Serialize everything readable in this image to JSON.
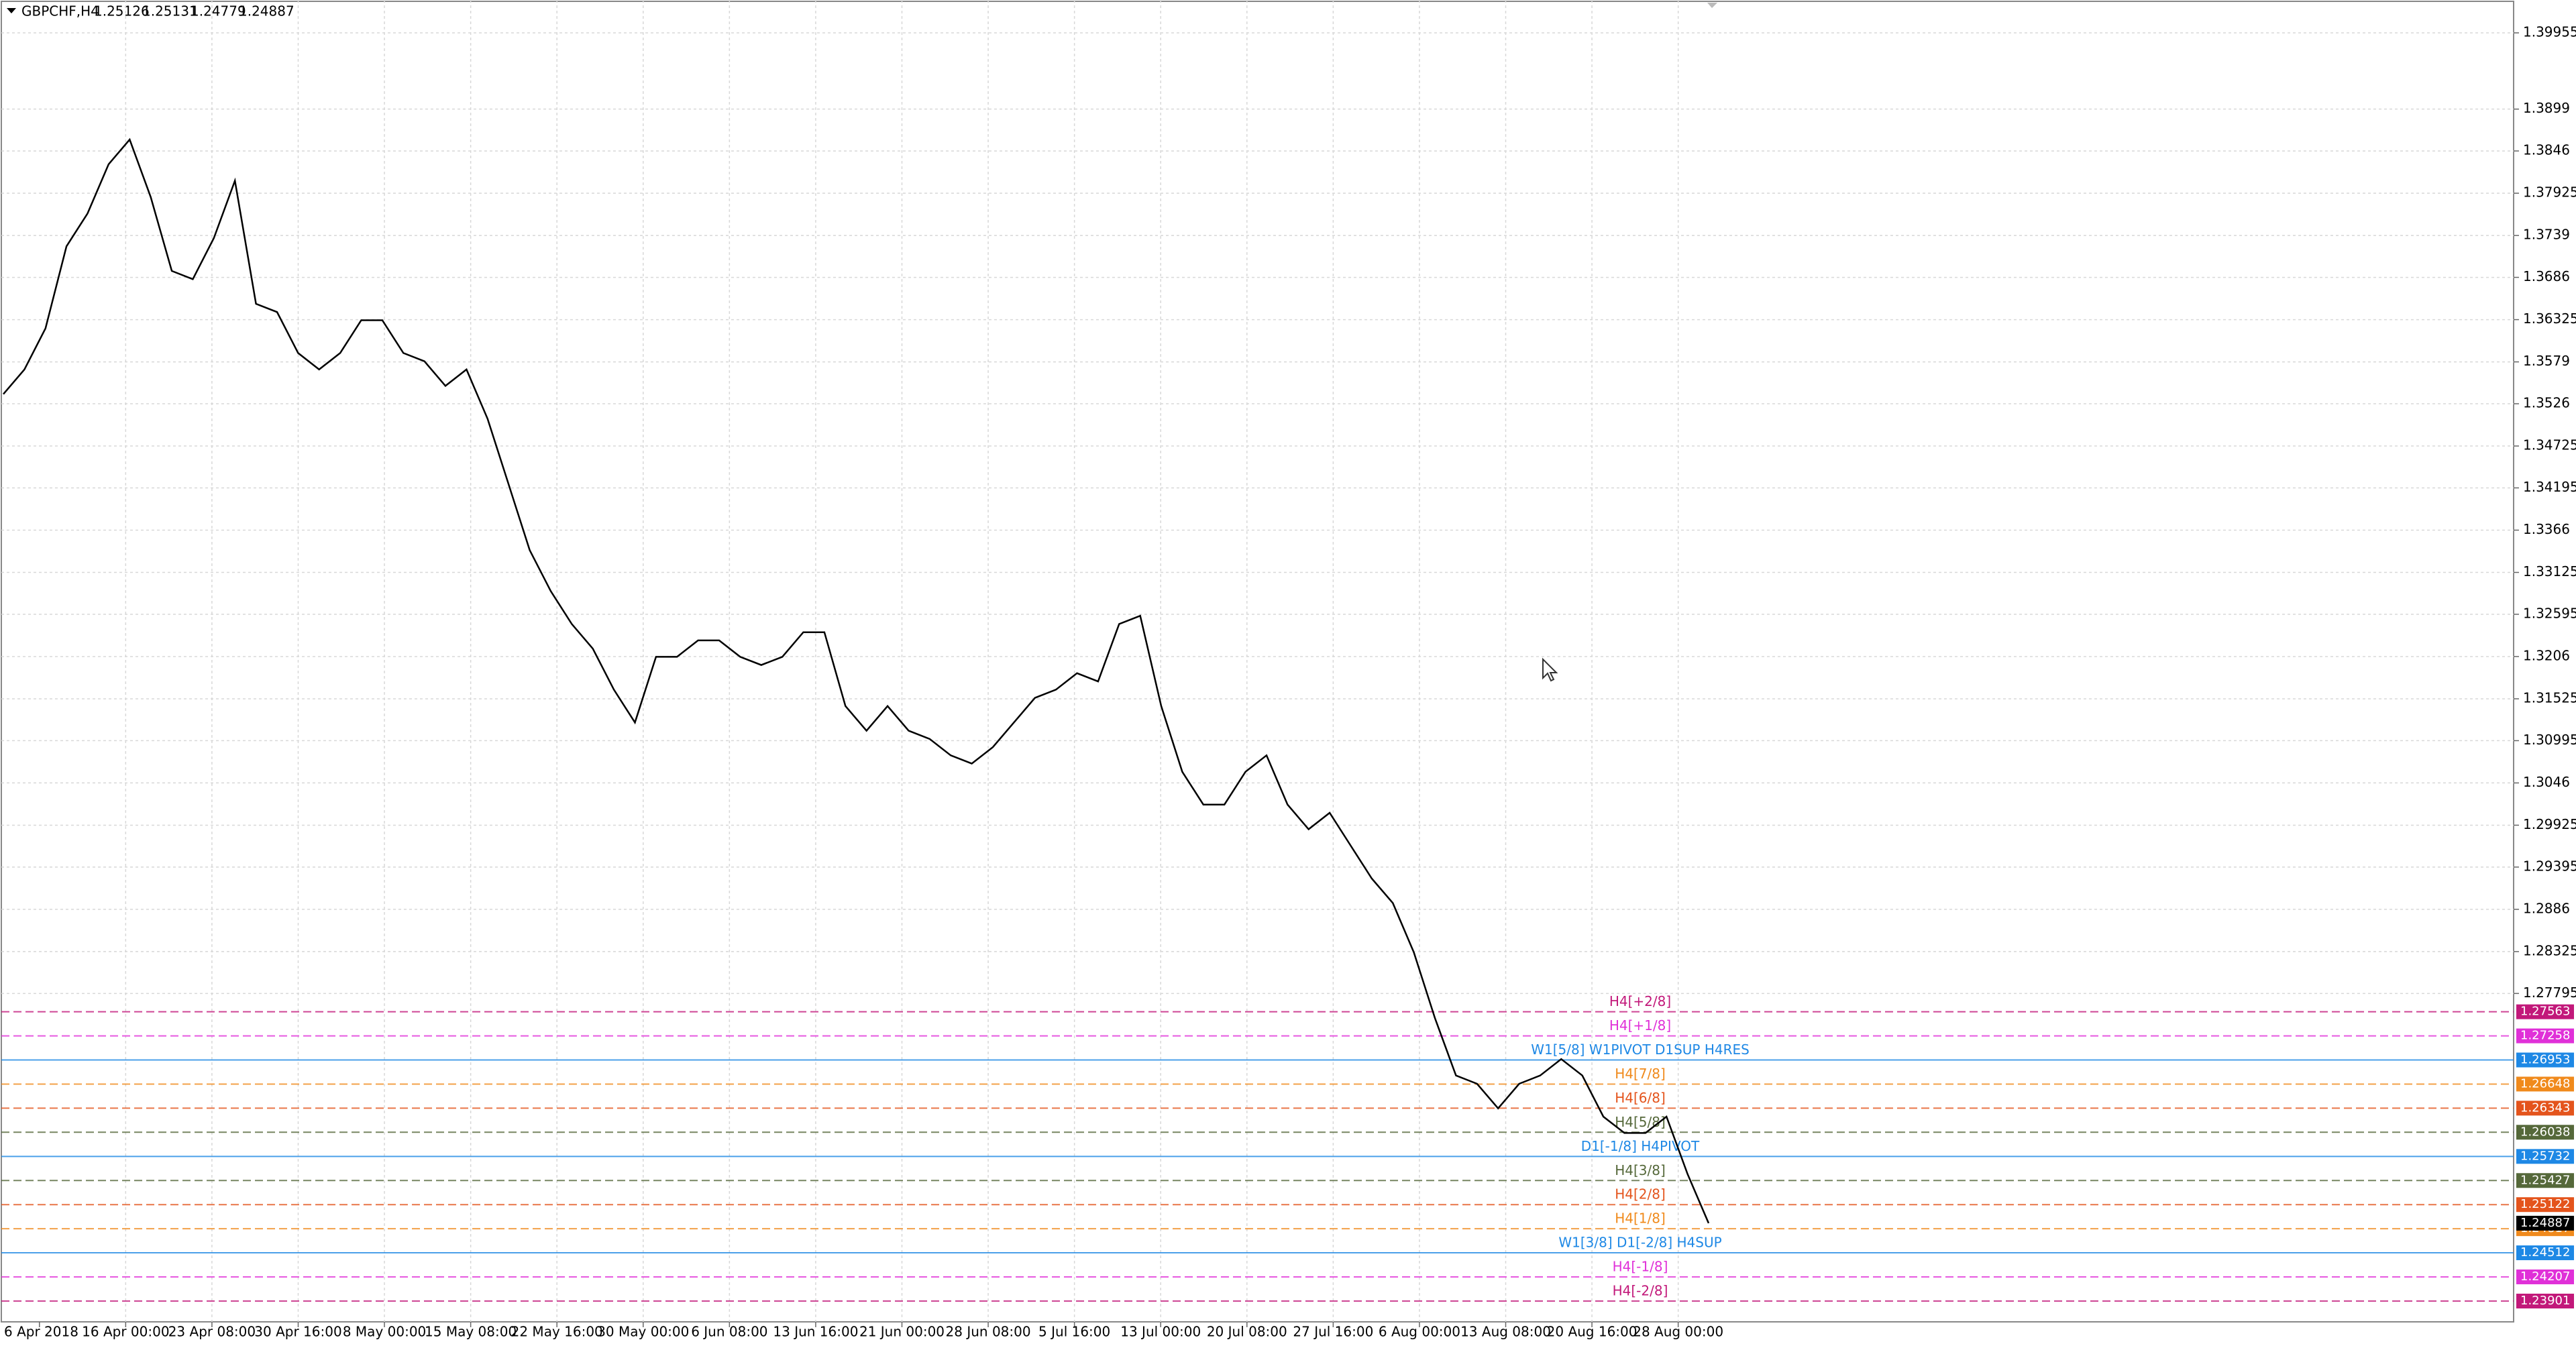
{
  "chart_data": {
    "type": "line",
    "header": {
      "symbol": "GBPCHF,H4",
      "open": 1.25126,
      "high": 1.25131,
      "low": 1.24779,
      "close": 1.24887
    },
    "color": "#000000",
    "grid": true,
    "ylim": [
      1.23638,
      1.40371
    ],
    "yticks": [
      1.39955,
      1.3899,
      1.3846,
      1.37925,
      1.3739,
      1.3686,
      1.36325,
      1.3579,
      1.3526,
      1.34725,
      1.34195,
      1.3366,
      1.33125,
      1.32595,
      1.3206,
      1.31525,
      1.30995,
      1.3046,
      1.29925,
      1.29395,
      1.2886,
      1.28325,
      1.27795
    ],
    "x_labels": [
      "6 Apr 2018",
      "16 Apr 00:00",
      "23 Apr 08:00",
      "30 Apr 16:00",
      "8 May 00:00",
      "15 May 08:00",
      "22 May 16:00",
      "30 May 00:00",
      "6 Jun 08:00",
      "13 Jun 16:00",
      "21 Jun 00:00",
      "28 Jun 08:00",
      "5 Jul 16:00",
      "13 Jul 00:00",
      "20 Jul 08:00",
      "27 Jul 16:00",
      "6 Aug 00:00",
      "13 Aug 08:00",
      "20 Aug 16:00",
      "28 Aug 00:00"
    ],
    "values": [
      1.35382,
      1.35694,
      1.36214,
      1.37253,
      1.37669,
      1.38292,
      1.38604,
      1.37876,
      1.36941,
      1.36837,
      1.37357,
      1.38084,
      1.36525,
      1.36421,
      1.35902,
      1.35694,
      1.35902,
      1.36317,
      1.36317,
      1.35902,
      1.35798,
      1.35486,
      1.35694,
      1.3507,
      1.34239,
      1.33407,
      1.32888,
      1.32472,
      1.3216,
      1.31641,
      1.31225,
      1.32056,
      1.32056,
      1.32264,
      1.32264,
      1.32056,
      1.31953,
      1.32056,
      1.32368,
      1.32368,
      1.31433,
      1.31121,
      1.31433,
      1.31121,
      1.31017,
      1.30809,
      1.30705,
      1.30913,
      1.31225,
      1.31537,
      1.31641,
      1.31849,
      1.31745,
      1.32472,
      1.32576,
      1.31433,
      1.30601,
      1.30186,
      1.30186,
      1.30601,
      1.30809,
      1.30186,
      1.29874,
      1.30082,
      1.29666,
      1.2925,
      1.28939,
      1.28315,
      1.27484,
      1.26756,
      1.26652,
      1.2634,
      1.26652,
      1.26756,
      1.26964,
      1.26756,
      1.26236,
      1.26029,
      1.26029,
      1.26236,
      1.25509,
      1.24887
    ],
    "levels": [
      {
        "value": 1.27563,
        "label": "H4[+2/8]",
        "color": "#c2187a",
        "dashed": true
      },
      {
        "value": 1.27258,
        "label": "H4[+1/8]",
        "color": "#e030d8",
        "dashed": true
      },
      {
        "value": 1.26953,
        "label": "W1[5/8] W1PIVOT D1SUP H4RES",
        "color": "#1e88e5",
        "dashed": false
      },
      {
        "value": 1.26648,
        "label": "H4[7/8]",
        "color": "#f08a1c",
        "dashed": true
      },
      {
        "value": 1.26343,
        "label": "H4[6/8]",
        "color": "#e4541c",
        "dashed": true
      },
      {
        "value": 1.26038,
        "label": "H4[5/8]",
        "color": "#55683a",
        "dashed": true
      },
      {
        "value": 1.25732,
        "label": "D1[-1/8] H4PIVOT",
        "color": "#1e88e5",
        "dashed": false
      },
      {
        "value": 1.25427,
        "label": "H4[3/8]",
        "color": "#55683a",
        "dashed": true
      },
      {
        "value": 1.25122,
        "label": "H4[2/8]",
        "color": "#e4541c",
        "dashed": true
      },
      {
        "value": 1.24817,
        "label": "H4[1/8]",
        "color": "#f08a1c",
        "dashed": true
      },
      {
        "value": 1.24512,
        "label": "W1[3/8] D1[-2/8] H4SUP",
        "color": "#1e88e5",
        "dashed": false
      },
      {
        "value": 1.24207,
        "label": "H4[-1/8]",
        "color": "#e030d8",
        "dashed": true
      },
      {
        "value": 1.23901,
        "label": "H4[-2/8]",
        "color": "#c2187a",
        "dashed": true
      }
    ],
    "last_price": 1.24887
  }
}
